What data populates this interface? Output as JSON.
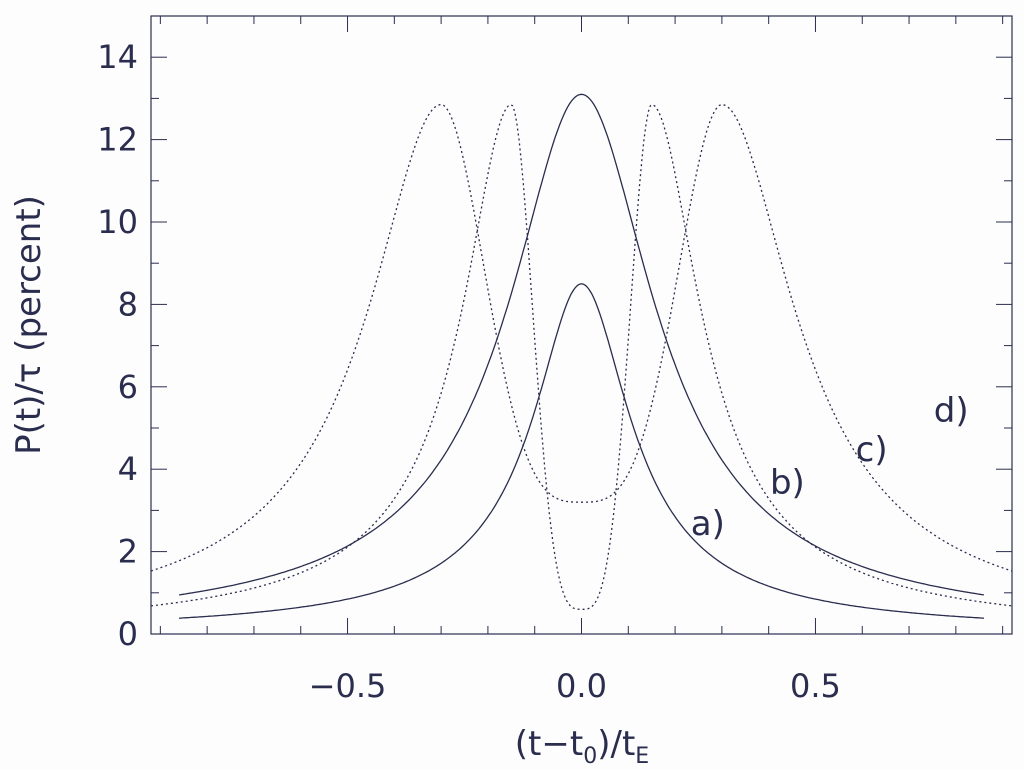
{
  "chart_data": {
    "type": "line",
    "xlabel": "(t−t0)/tE",
    "ylabel": "P(t)/τ  (percent)",
    "xlim": [
      -0.92,
      0.92
    ],
    "ylim": [
      0,
      15
    ],
    "xticks": [
      {
        "value": -0.5,
        "label": "−0.5"
      },
      {
        "value": 0.0,
        "label": "0.0"
      },
      {
        "value": 0.5,
        "label": "0.5"
      }
    ],
    "yticks": [
      {
        "value": 0,
        "label": "0"
      },
      {
        "value": 2,
        "label": "2"
      },
      {
        "value": 4,
        "label": "4"
      },
      {
        "value": 6,
        "label": "6"
      },
      {
        "value": 8,
        "label": "8"
      },
      {
        "value": 10,
        "label": "10"
      },
      {
        "value": 12,
        "label": "12"
      },
      {
        "value": 14,
        "label": "14"
      }
    ],
    "grid": false,
    "series": [
      {
        "label": "a)",
        "style": "solid",
        "label_x": 0.27,
        "label_y": 2.4,
        "profile": "single",
        "peak": 8.5,
        "center": 0.0,
        "width": 0.11,
        "tail": 0.75
      },
      {
        "label": "b)",
        "style": "solid",
        "label_x": 0.44,
        "label_y": 3.4,
        "profile": "single",
        "peak": 13.1,
        "center": 0.0,
        "width": 0.17,
        "tail": 0.8
      },
      {
        "label": "a)",
        "style": "dotted",
        "profile": "double",
        "peak": 12.85,
        "center": 0.15,
        "width": 0.11,
        "tail": 0.75,
        "dip": 0.6
      },
      {
        "label": "b)",
        "style": "dotted",
        "profile": "double",
        "peak": 12.85,
        "center": 0.3,
        "width": 0.17,
        "tail": 0.8,
        "dip": 3.2
      },
      {
        "label": "c)",
        "style": "dotted",
        "label_x": 0.62,
        "label_y": 4.2,
        "profile": "none"
      },
      {
        "label": "d)",
        "style": "dotted",
        "label_x": 0.79,
        "label_y": 5.15,
        "profile": "none"
      }
    ],
    "curve_labels": [
      {
        "text": "a)",
        "x": 0.27,
        "y": 2.4
      },
      {
        "text": "b)",
        "x": 0.44,
        "y": 3.4
      },
      {
        "text": "c)",
        "x": 0.62,
        "y": 4.2
      },
      {
        "text": "d)",
        "x": 0.79,
        "y": 5.15
      }
    ],
    "colors": {
      "line": "#2a2d4e",
      "axis": "#2a2d4e",
      "label": "#3a3d6e"
    }
  }
}
